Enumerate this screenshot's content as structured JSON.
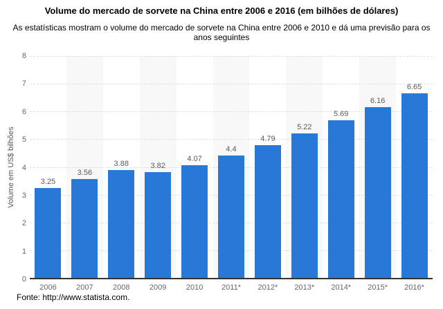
{
  "header": {
    "title": "Volume do mercado de sorvete na China entre 2006 e 2016 (em bilhões de dólares)",
    "subtitle": "As estatísticas mostram o volume do mercado de sorvete na China entre 2006 e 2010 e dá uma previsão para os anos seguintes"
  },
  "chart_data": {
    "type": "bar",
    "title": "Volume do mercado de sorvete na China entre 2006 e 2016 (em bilhões de dólares)",
    "subtitle": "As estatísticas mostram o volume do mercado de sorvete na China entre 2006 e 2010 e dá uma previsão para os anos seguintes",
    "categories": [
      "2006",
      "2007",
      "2008",
      "2009",
      "2010",
      "2011*",
      "2012*",
      "2013*",
      "2014*",
      "2015*",
      "2016*"
    ],
    "values": [
      3.25,
      3.56,
      3.88,
      3.82,
      4.07,
      4.4,
      4.79,
      5.22,
      5.69,
      6.16,
      6.65
    ],
    "value_labels": [
      "3.25",
      "3.56",
      "3.88",
      "3.82",
      "4.07",
      "4.4",
      "4.79",
      "5.22",
      "5.69",
      "6.16",
      "6.65"
    ],
    "xlabel": "",
    "ylabel": "Volume em US$ bilhões",
    "ylim": [
      0,
      8
    ],
    "yticks": [
      0,
      1,
      2,
      3,
      4,
      5,
      6,
      7,
      8
    ],
    "grid": true,
    "legend": "none",
    "colors": {
      "bar": "#2878d8",
      "alt_band": "#f8f8f8",
      "gridline": "#dedede",
      "axis_line": "#333333",
      "value_label": "#595959",
      "tick_label": "#666666"
    }
  },
  "footer": {
    "source": "Fonte: http://www.statista.com."
  }
}
